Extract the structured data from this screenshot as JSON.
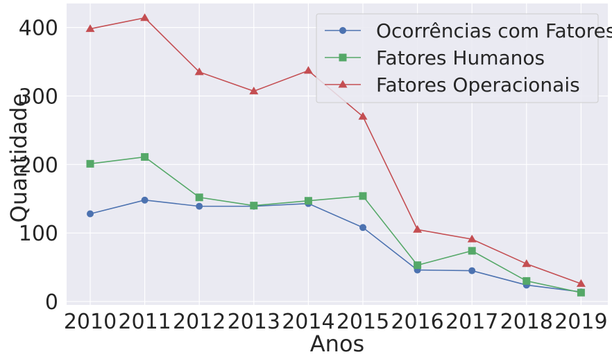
{
  "chart_data": {
    "type": "line",
    "xlabel": "Anos",
    "ylabel": "Quantidade",
    "x": [
      "2010",
      "2011",
      "2012",
      "2013",
      "2014",
      "2015",
      "2016",
      "2017",
      "2018",
      "2019"
    ],
    "ylim": [
      -5,
      435
    ],
    "yticks": [
      0,
      100,
      200,
      300,
      400
    ],
    "grid": true,
    "legend_position": "top-right",
    "background": "#eaeaf2",
    "series": [
      {
        "name": "Ocorrências com Fatores",
        "marker": "circle",
        "color": "#4c72b0",
        "values": [
          128,
          148,
          139,
          139,
          143,
          108,
          46,
          45,
          24,
          14
        ]
      },
      {
        "name": "Fatores Humanos",
        "marker": "square",
        "color": "#55a868",
        "values": [
          201,
          211,
          152,
          140,
          147,
          154,
          53,
          74,
          30,
          13
        ]
      },
      {
        "name": "Fatores Operacionais",
        "marker": "triangle",
        "color": "#c44e52",
        "values": [
          398,
          414,
          335,
          307,
          337,
          270,
          105,
          91,
          55,
          26
        ]
      }
    ]
  }
}
